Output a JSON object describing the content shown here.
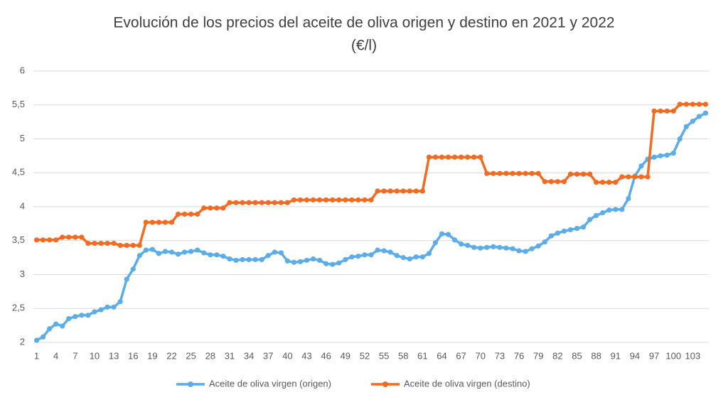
{
  "chart_data": {
    "type": "line",
    "title": "Evolución de los precios del aceite de oliva origen y destino en 2021 y 2022",
    "subtitle": "(€/l)",
    "categories": [
      "1",
      null,
      null,
      "4",
      null,
      null,
      "7",
      null,
      null,
      "10",
      null,
      null,
      "13",
      null,
      null,
      "16",
      null,
      null,
      "19",
      null,
      null,
      "22",
      null,
      null,
      "25",
      null,
      null,
      "28",
      null,
      null,
      "31",
      null,
      null,
      "34",
      null,
      null,
      "37",
      null,
      null,
      "40",
      null,
      null,
      "43",
      null,
      null,
      "46",
      null,
      null,
      "49",
      null,
      null,
      "52",
      null,
      null,
      "55",
      null,
      null,
      "58",
      null,
      null,
      "61",
      null,
      null,
      "64",
      null,
      null,
      "67",
      null,
      null,
      "70",
      null,
      null,
      "73",
      null,
      null,
      "76",
      null,
      null,
      "79",
      null,
      null,
      "82",
      null,
      null,
      "85",
      null,
      null,
      "88",
      null,
      null,
      "91",
      null,
      null,
      "94",
      null,
      null,
      "97",
      null,
      null,
      "100",
      null,
      null,
      "103",
      null,
      null
    ],
    "series": [
      {
        "name": "Aceite de oliva virgen (origen)",
        "color": "#5aade8",
        "values": [
          2.03,
          2.08,
          2.2,
          2.27,
          2.24,
          2.35,
          2.38,
          2.4,
          2.4,
          2.45,
          2.48,
          2.52,
          2.52,
          2.6,
          2.93,
          3.08,
          3.28,
          3.36,
          3.37,
          3.31,
          3.34,
          3.33,
          3.3,
          3.33,
          3.34,
          3.36,
          3.32,
          3.29,
          3.29,
          3.27,
          3.23,
          3.21,
          3.22,
          3.22,
          3.22,
          3.22,
          3.28,
          3.33,
          3.32,
          3.2,
          3.18,
          3.19,
          3.21,
          3.23,
          3.21,
          3.16,
          3.15,
          3.17,
          3.22,
          3.26,
          3.27,
          3.29,
          3.29,
          3.36,
          3.35,
          3.33,
          3.28,
          3.25,
          3.23,
          3.26,
          3.26,
          3.31,
          3.47,
          3.6,
          3.59,
          3.51,
          3.45,
          3.43,
          3.4,
          3.39,
          3.4,
          3.41,
          3.4,
          3.39,
          3.38,
          3.35,
          3.34,
          3.38,
          3.42,
          3.48,
          3.57,
          3.61,
          3.64,
          3.66,
          3.68,
          3.7,
          3.81,
          3.87,
          3.91,
          3.95,
          3.96,
          3.96,
          4.12,
          4.45,
          4.6,
          4.7,
          4.73,
          4.75,
          4.76,
          4.79,
          5.0,
          5.18,
          5.26,
          5.33,
          5.38
        ]
      },
      {
        "name": "Aceite de oliva virgen (destino)",
        "color": "#f26b21",
        "values": [
          3.51,
          3.51,
          3.51,
          3.51,
          3.55,
          3.55,
          3.55,
          3.55,
          3.46,
          3.46,
          3.46,
          3.46,
          3.46,
          3.43,
          3.43,
          3.43,
          3.43,
          3.77,
          3.77,
          3.77,
          3.77,
          3.77,
          3.89,
          3.89,
          3.89,
          3.89,
          3.98,
          3.98,
          3.98,
          3.98,
          4.06,
          4.06,
          4.06,
          4.06,
          4.06,
          4.06,
          4.06,
          4.06,
          4.06,
          4.06,
          4.1,
          4.1,
          4.1,
          4.1,
          4.1,
          4.1,
          4.1,
          4.1,
          4.1,
          4.1,
          4.1,
          4.1,
          4.1,
          4.23,
          4.23,
          4.23,
          4.23,
          4.23,
          4.23,
          4.23,
          4.23,
          4.73,
          4.73,
          4.73,
          4.73,
          4.73,
          4.73,
          4.73,
          4.73,
          4.73,
          4.49,
          4.49,
          4.49,
          4.49,
          4.49,
          4.49,
          4.49,
          4.49,
          4.49,
          4.37,
          4.37,
          4.37,
          4.37,
          4.48,
          4.48,
          4.48,
          4.48,
          4.36,
          4.36,
          4.36,
          4.36,
          4.44,
          4.44,
          4.44,
          4.44,
          4.44,
          5.41,
          5.41,
          5.41,
          5.41,
          5.51,
          5.51,
          5.51,
          5.51,
          5.51
        ]
      }
    ],
    "ylim": [
      2,
      6
    ],
    "yticks": [
      2,
      {
        "value": 2.5,
        "label": "2,5"
      },
      3,
      {
        "value": 3.5,
        "label": "3,5"
      },
      4,
      {
        "value": 4.5,
        "label": "4,5"
      },
      5,
      {
        "value": 5.5,
        "label": "5,5"
      },
      6
    ],
    "grid": true,
    "legend": "bottom"
  }
}
